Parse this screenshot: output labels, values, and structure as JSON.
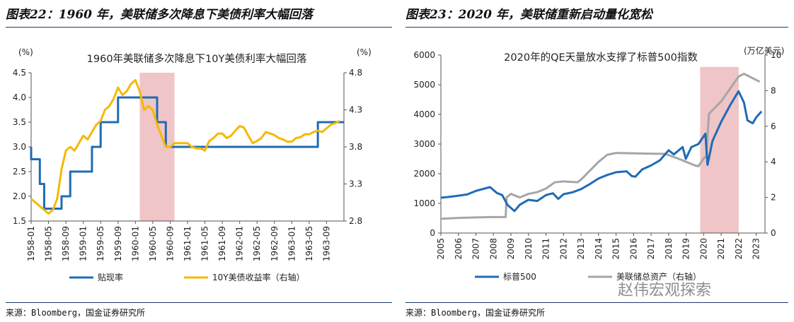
{
  "left": {
    "heading": "图表22：1960 年，美联储多次降息下美债利率大幅回落",
    "source": "来源：Bloomberg，国金证券研究所"
  },
  "right": {
    "heading": "图表23：2020 年，美联储重新启动量化宽松",
    "source": "来源：Bloomberg，国金证券研究所"
  },
  "watermark": "赵伟宏观探索",
  "chart_data": [
    {
      "type": "line",
      "title": "1960年美联储多次降息下10Y美债利率大幅回落",
      "left_unit": "(%)",
      "right_unit": "(%)",
      "ylim": [
        1.5,
        4.5
      ],
      "yticks": [
        "1.5",
        "2.0",
        "2.5",
        "3.0",
        "3.5",
        "4.0",
        "4.5"
      ],
      "y2lim": [
        2.8,
        4.8
      ],
      "y2ticks": [
        "2.8",
        "3.3",
        "3.8",
        "4.3",
        "4.8"
      ],
      "xlim": [
        "1958-01",
        "1964-01"
      ],
      "xticks": [
        "1958-01",
        "1958-05",
        "1958-09",
        "1959-01",
        "1959-05",
        "1959-09",
        "1960-01",
        "1960-05",
        "1960-09",
        "1961-01",
        "1961-05",
        "1961-09",
        "1962-01",
        "1962-05",
        "1962-09",
        "1963-01",
        "1963-05",
        "1963-09"
      ],
      "shaded": [
        "1960-02",
        "1960-10"
      ],
      "legend_position": "bottom",
      "series": [
        {
          "name": "贴现率",
          "axis": "left",
          "color": "#1f6bb5",
          "step": true,
          "points": [
            [
              "1958-01",
              3.0
            ],
            [
              "1958-01",
              2.75
            ],
            [
              "1958-03",
              2.25
            ],
            [
              "1958-04",
              1.75
            ],
            [
              "1958-08",
              2.0
            ],
            [
              "1958-10",
              2.5
            ],
            [
              "1959-03",
              3.0
            ],
            [
              "1959-05",
              3.5
            ],
            [
              "1959-09",
              4.0
            ],
            [
              "1960-06",
              3.5
            ],
            [
              "1960-08",
              3.0
            ],
            [
              "1963-07",
              3.5
            ],
            [
              "1964-01",
              3.5
            ]
          ]
        },
        {
          "name": "10Y美债收益率（右轴）",
          "axis": "right",
          "color": "#f5b800",
          "step": false,
          "points": [
            [
              "1958-01",
              3.1
            ],
            [
              "1958-02",
              3.05
            ],
            [
              "1958-03",
              3.0
            ],
            [
              "1958-04",
              2.95
            ],
            [
              "1958-05",
              2.9
            ],
            [
              "1958-06",
              2.95
            ],
            [
              "1958-07",
              3.1
            ],
            [
              "1958-08",
              3.5
            ],
            [
              "1958-09",
              3.75
            ],
            [
              "1958-10",
              3.8
            ],
            [
              "1958-11",
              3.75
            ],
            [
              "1958-12",
              3.85
            ],
            [
              "1959-01",
              3.95
            ],
            [
              "1959-02",
              3.9
            ],
            [
              "1959-03",
              4.0
            ],
            [
              "1959-04",
              4.1
            ],
            [
              "1959-05",
              4.15
            ],
            [
              "1959-06",
              4.3
            ],
            [
              "1959-07",
              4.35
            ],
            [
              "1959-08",
              4.45
            ],
            [
              "1959-09",
              4.6
            ],
            [
              "1959-10",
              4.5
            ],
            [
              "1959-11",
              4.55
            ],
            [
              "1959-12",
              4.65
            ],
            [
              "1960-01",
              4.7
            ],
            [
              "1960-02",
              4.55
            ],
            [
              "1960-03",
              4.3
            ],
            [
              "1960-04",
              4.35
            ],
            [
              "1960-05",
              4.3
            ],
            [
              "1960-06",
              4.1
            ],
            [
              "1960-07",
              3.95
            ],
            [
              "1960-08",
              3.8
            ],
            [
              "1960-09",
              3.8
            ],
            [
              "1960-10",
              3.85
            ],
            [
              "1960-11",
              3.85
            ],
            [
              "1960-12",
              3.85
            ],
            [
              "1961-01",
              3.85
            ],
            [
              "1961-02",
              3.8
            ],
            [
              "1961-03",
              3.78
            ],
            [
              "1961-04",
              3.78
            ],
            [
              "1961-05",
              3.75
            ],
            [
              "1961-06",
              3.88
            ],
            [
              "1961-07",
              3.92
            ],
            [
              "1961-08",
              3.98
            ],
            [
              "1961-09",
              3.98
            ],
            [
              "1961-10",
              3.92
            ],
            [
              "1961-11",
              3.95
            ],
            [
              "1961-12",
              4.02
            ],
            [
              "1962-01",
              4.08
            ],
            [
              "1962-02",
              4.06
            ],
            [
              "1962-03",
              3.95
            ],
            [
              "1962-04",
              3.85
            ],
            [
              "1962-05",
              3.88
            ],
            [
              "1962-06",
              3.92
            ],
            [
              "1962-07",
              4.0
            ],
            [
              "1962-08",
              3.98
            ],
            [
              "1962-09",
              3.96
            ],
            [
              "1962-10",
              3.92
            ],
            [
              "1962-11",
              3.9
            ],
            [
              "1962-12",
              3.87
            ],
            [
              "1963-01",
              3.87
            ],
            [
              "1963-02",
              3.92
            ],
            [
              "1963-03",
              3.93
            ],
            [
              "1963-04",
              3.97
            ],
            [
              "1963-05",
              3.97
            ],
            [
              "1963-06",
              4.0
            ],
            [
              "1963-07",
              4.02
            ],
            [
              "1963-08",
              4.0
            ],
            [
              "1963-09",
              4.05
            ],
            [
              "1963-10",
              4.1
            ],
            [
              "1963-11",
              4.12
            ],
            [
              "1963-12",
              4.15
            ]
          ]
        }
      ]
    },
    {
      "type": "line",
      "title": "2020年的QE天量放水支撑了标普500指数",
      "right_unit": "(万亿美元)",
      "ylim": [
        0,
        6000
      ],
      "yticks": [
        "0",
        "1000",
        "2000",
        "3000",
        "4000",
        "5000",
        "6000"
      ],
      "y2lim": [
        0,
        10
      ],
      "y2ticks": [
        "0",
        "2",
        "4",
        "6",
        "8",
        "10"
      ],
      "xlim": [
        2005,
        2023.5
      ],
      "xticks": [
        "2005",
        "2006",
        "2007",
        "2008",
        "2009",
        "2010",
        "2011",
        "2012",
        "2013",
        "2014",
        "2015",
        "2016",
        "2017",
        "2018",
        "2019",
        "2020",
        "2021",
        "2022",
        "2023"
      ],
      "shaded": [
        2019.8,
        2022.0
      ],
      "legend_position": "bottom",
      "series": [
        {
          "name": "标普500",
          "axis": "left",
          "color": "#1f6bb5",
          "points": [
            [
              2005.0,
              1190
            ],
            [
              2005.5,
              1220
            ],
            [
              2006.0,
              1260
            ],
            [
              2006.5,
              1300
            ],
            [
              2007.0,
              1420
            ],
            [
              2007.5,
              1500
            ],
            [
              2007.8,
              1550
            ],
            [
              2008.2,
              1350
            ],
            [
              2008.5,
              1280
            ],
            [
              2008.8,
              950
            ],
            [
              2009.2,
              740
            ],
            [
              2009.5,
              950
            ],
            [
              2010.0,
              1120
            ],
            [
              2010.5,
              1080
            ],
            [
              2011.0,
              1280
            ],
            [
              2011.4,
              1340
            ],
            [
              2011.7,
              1150
            ],
            [
              2012.0,
              1310
            ],
            [
              2012.5,
              1370
            ],
            [
              2013.0,
              1480
            ],
            [
              2013.5,
              1650
            ],
            [
              2014.0,
              1840
            ],
            [
              2014.5,
              1960
            ],
            [
              2015.0,
              2050
            ],
            [
              2015.6,
              2080
            ],
            [
              2015.9,
              1920
            ],
            [
              2016.1,
              1900
            ],
            [
              2016.5,
              2150
            ],
            [
              2017.0,
              2280
            ],
            [
              2017.5,
              2450
            ],
            [
              2018.0,
              2790
            ],
            [
              2018.3,
              2650
            ],
            [
              2018.8,
              2900
            ],
            [
              2018.98,
              2500
            ],
            [
              2019.3,
              2900
            ],
            [
              2019.7,
              3000
            ],
            [
              2020.1,
              3350
            ],
            [
              2020.22,
              2300
            ],
            [
              2020.5,
              3100
            ],
            [
              2021.0,
              3750
            ],
            [
              2021.5,
              4300
            ],
            [
              2021.99,
              4780
            ],
            [
              2022.3,
              4400
            ],
            [
              2022.5,
              3800
            ],
            [
              2022.8,
              3700
            ],
            [
              2023.0,
              3900
            ],
            [
              2023.3,
              4100
            ]
          ]
        },
        {
          "name": "美联储总资产（右轴）",
          "axis": "right",
          "color": "#a6a6a6",
          "points": [
            [
              2005.0,
              0.8
            ],
            [
              2006.0,
              0.85
            ],
            [
              2007.0,
              0.88
            ],
            [
              2008.0,
              0.9
            ],
            [
              2008.7,
              0.9
            ],
            [
              2008.75,
              2.0
            ],
            [
              2009.0,
              2.2
            ],
            [
              2009.5,
              2.0
            ],
            [
              2010.0,
              2.2
            ],
            [
              2010.5,
              2.3
            ],
            [
              2011.0,
              2.5
            ],
            [
              2011.5,
              2.85
            ],
            [
              2012.0,
              2.9
            ],
            [
              2012.8,
              2.85
            ],
            [
              2013.0,
              3.0
            ],
            [
              2013.5,
              3.5
            ],
            [
              2014.0,
              4.0
            ],
            [
              2014.5,
              4.4
            ],
            [
              2015.0,
              4.5
            ],
            [
              2016.0,
              4.48
            ],
            [
              2017.0,
              4.46
            ],
            [
              2017.8,
              4.45
            ],
            [
              2018.5,
              4.2
            ],
            [
              2019.0,
              4.0
            ],
            [
              2019.5,
              3.8
            ],
            [
              2019.7,
              3.75
            ],
            [
              2020.0,
              4.2
            ],
            [
              2020.15,
              4.3
            ],
            [
              2020.3,
              6.7
            ],
            [
              2020.6,
              7.0
            ],
            [
              2021.0,
              7.4
            ],
            [
              2021.5,
              8.1
            ],
            [
              2022.0,
              8.8
            ],
            [
              2022.3,
              8.95
            ],
            [
              2022.8,
              8.7
            ],
            [
              2023.2,
              8.5
            ]
          ]
        }
      ]
    }
  ]
}
